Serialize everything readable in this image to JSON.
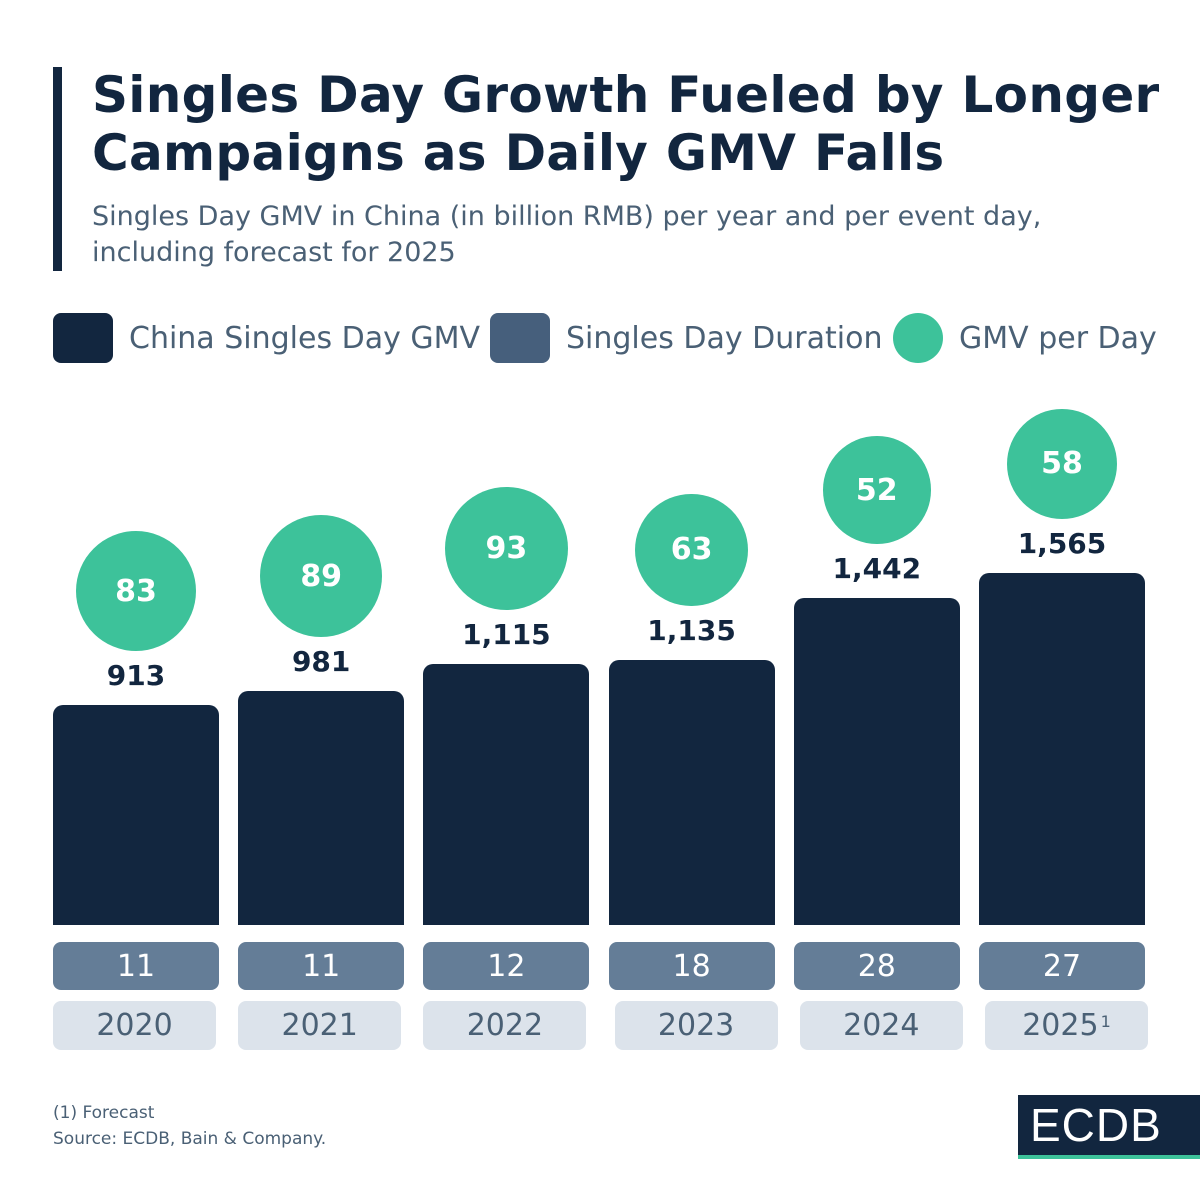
{
  "title": "Singles Day Growth Fueled by Longer Campaigns as Daily GMV Falls",
  "subtitle": "Singles Day GMV in China (in billion RMB) per year and per event day, including forecast for 2025",
  "legend": [
    {
      "label": "China Singles Day GMV",
      "color": "#12263f",
      "shape": "rounded-square"
    },
    {
      "label": "Singles Day Duration",
      "color": "#465f7c",
      "shape": "rounded-square"
    },
    {
      "label": "GMV per Day",
      "color": "#3dc29a",
      "shape": "circle"
    }
  ],
  "chart_data": {
    "type": "bar",
    "categories": [
      "2020",
      "2021",
      "2022",
      "2023",
      "2024",
      "2025"
    ],
    "category_footnotes": [
      "",
      "",
      "",
      "",
      "",
      "1"
    ],
    "series": [
      {
        "name": "China Singles Day GMV",
        "values": [
          913,
          981,
          1115,
          1135,
          1442,
          1565
        ],
        "labels": [
          "913",
          "981",
          "1,115",
          "1,135",
          "1,442",
          "1,565"
        ],
        "color": "#12263f"
      },
      {
        "name": "Singles Day Duration",
        "values": [
          11,
          11,
          12,
          18,
          28,
          27
        ],
        "color": "#647d97"
      },
      {
        "name": "GMV per Day",
        "values": [
          83,
          89,
          93,
          63,
          52,
          58
        ],
        "color": "#3dc29a",
        "shape": "bubble"
      }
    ],
    "grid": false,
    "legend_position": "top"
  },
  "footer": {
    "note": "(1) Forecast",
    "source": "Source: ECDB, Bain & Company."
  },
  "logo": "ECDB"
}
